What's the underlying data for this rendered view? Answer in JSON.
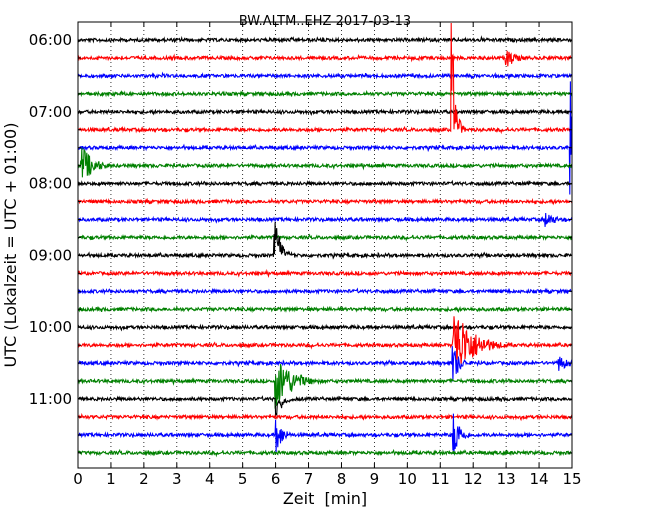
{
  "chart_data": {
    "type": "line",
    "title": "BW.ALTM..EHZ 2017-03-13",
    "xlabel": "Zeit  [min]",
    "ylabel": "UTC (Lokalzeit = UTC + 01:00)",
    "xlim": [
      0,
      15
    ],
    "x_ticks": [
      0,
      1,
      2,
      3,
      4,
      5,
      6,
      7,
      8,
      9,
      10,
      11,
      12,
      13,
      14,
      15
    ],
    "y_tick_labels": [
      "06:00",
      "07:00",
      "08:00",
      "09:00",
      "10:00",
      "11:00"
    ],
    "grid": true,
    "trace_colors": [
      "#000000",
      "#ff0000",
      "#0000ff",
      "#008000"
    ],
    "trace_interval_minutes": 15,
    "traces": [
      {
        "start": "06:00",
        "color": "#000000"
      },
      {
        "start": "06:15",
        "color": "#ff0000"
      },
      {
        "start": "06:30",
        "color": "#0000ff"
      },
      {
        "start": "06:45",
        "color": "#008000"
      },
      {
        "start": "07:00",
        "color": "#000000"
      },
      {
        "start": "07:15",
        "color": "#ff0000"
      },
      {
        "start": "07:30",
        "color": "#0000ff"
      },
      {
        "start": "07:45",
        "color": "#008000"
      },
      {
        "start": "08:00",
        "color": "#000000"
      },
      {
        "start": "08:15",
        "color": "#ff0000"
      },
      {
        "start": "08:30",
        "color": "#0000ff"
      },
      {
        "start": "08:45",
        "color": "#008000"
      },
      {
        "start": "09:00",
        "color": "#000000"
      },
      {
        "start": "09:15",
        "color": "#ff0000"
      },
      {
        "start": "09:30",
        "color": "#0000ff"
      },
      {
        "start": "09:45",
        "color": "#008000"
      },
      {
        "start": "10:00",
        "color": "#000000"
      },
      {
        "start": "10:15",
        "color": "#ff0000"
      },
      {
        "start": "10:30",
        "color": "#0000ff"
      },
      {
        "start": "10:45",
        "color": "#008000"
      },
      {
        "start": "11:00",
        "color": "#000000"
      },
      {
        "start": "11:15",
        "color": "#ff0000"
      },
      {
        "start": "11:30",
        "color": "#0000ff"
      },
      {
        "start": "11:45",
        "color": "#008000"
      }
    ],
    "events": [
      {
        "trace": 7,
        "minute": 0.1,
        "amplitude": 1.2,
        "decay": 0.35,
        "direction": "both"
      },
      {
        "trace": 6,
        "minute": 14.95,
        "amplitude": 5.4,
        "decay": 0.06,
        "direction": "both"
      },
      {
        "trace": 5,
        "minute": 11.35,
        "amplitude": 6.5,
        "decay": 0.1,
        "direction": "up"
      },
      {
        "trace": 17,
        "minute": 11.4,
        "amplitude": 2.3,
        "decay": 0.55,
        "direction": "both"
      },
      {
        "trace": 12,
        "minute": 5.97,
        "amplitude": 2.1,
        "decay": 0.2,
        "direction": "up"
      },
      {
        "trace": 19,
        "minute": 6.0,
        "amplitude": 1.6,
        "decay": 0.5,
        "direction": "both"
      },
      {
        "trace": 20,
        "minute": 6.02,
        "amplitude": 1.2,
        "decay": 0.2,
        "direction": "down"
      },
      {
        "trace": 22,
        "minute": 11.4,
        "amplitude": 1.5,
        "decay": 0.2,
        "direction": "both"
      },
      {
        "trace": 22,
        "minute": 6.02,
        "amplitude": 1.1,
        "decay": 0.2,
        "direction": "both"
      },
      {
        "trace": 18,
        "minute": 11.38,
        "amplitude": 1.2,
        "decay": 0.2,
        "direction": "both"
      },
      {
        "trace": 1,
        "minute": 13.0,
        "amplitude": 0.6,
        "decay": 0.3,
        "direction": "both"
      },
      {
        "trace": 10,
        "minute": 14.2,
        "amplitude": 0.5,
        "decay": 0.3,
        "direction": "both"
      },
      {
        "trace": 18,
        "minute": 14.6,
        "amplitude": 0.5,
        "decay": 0.3,
        "direction": "both"
      }
    ]
  }
}
